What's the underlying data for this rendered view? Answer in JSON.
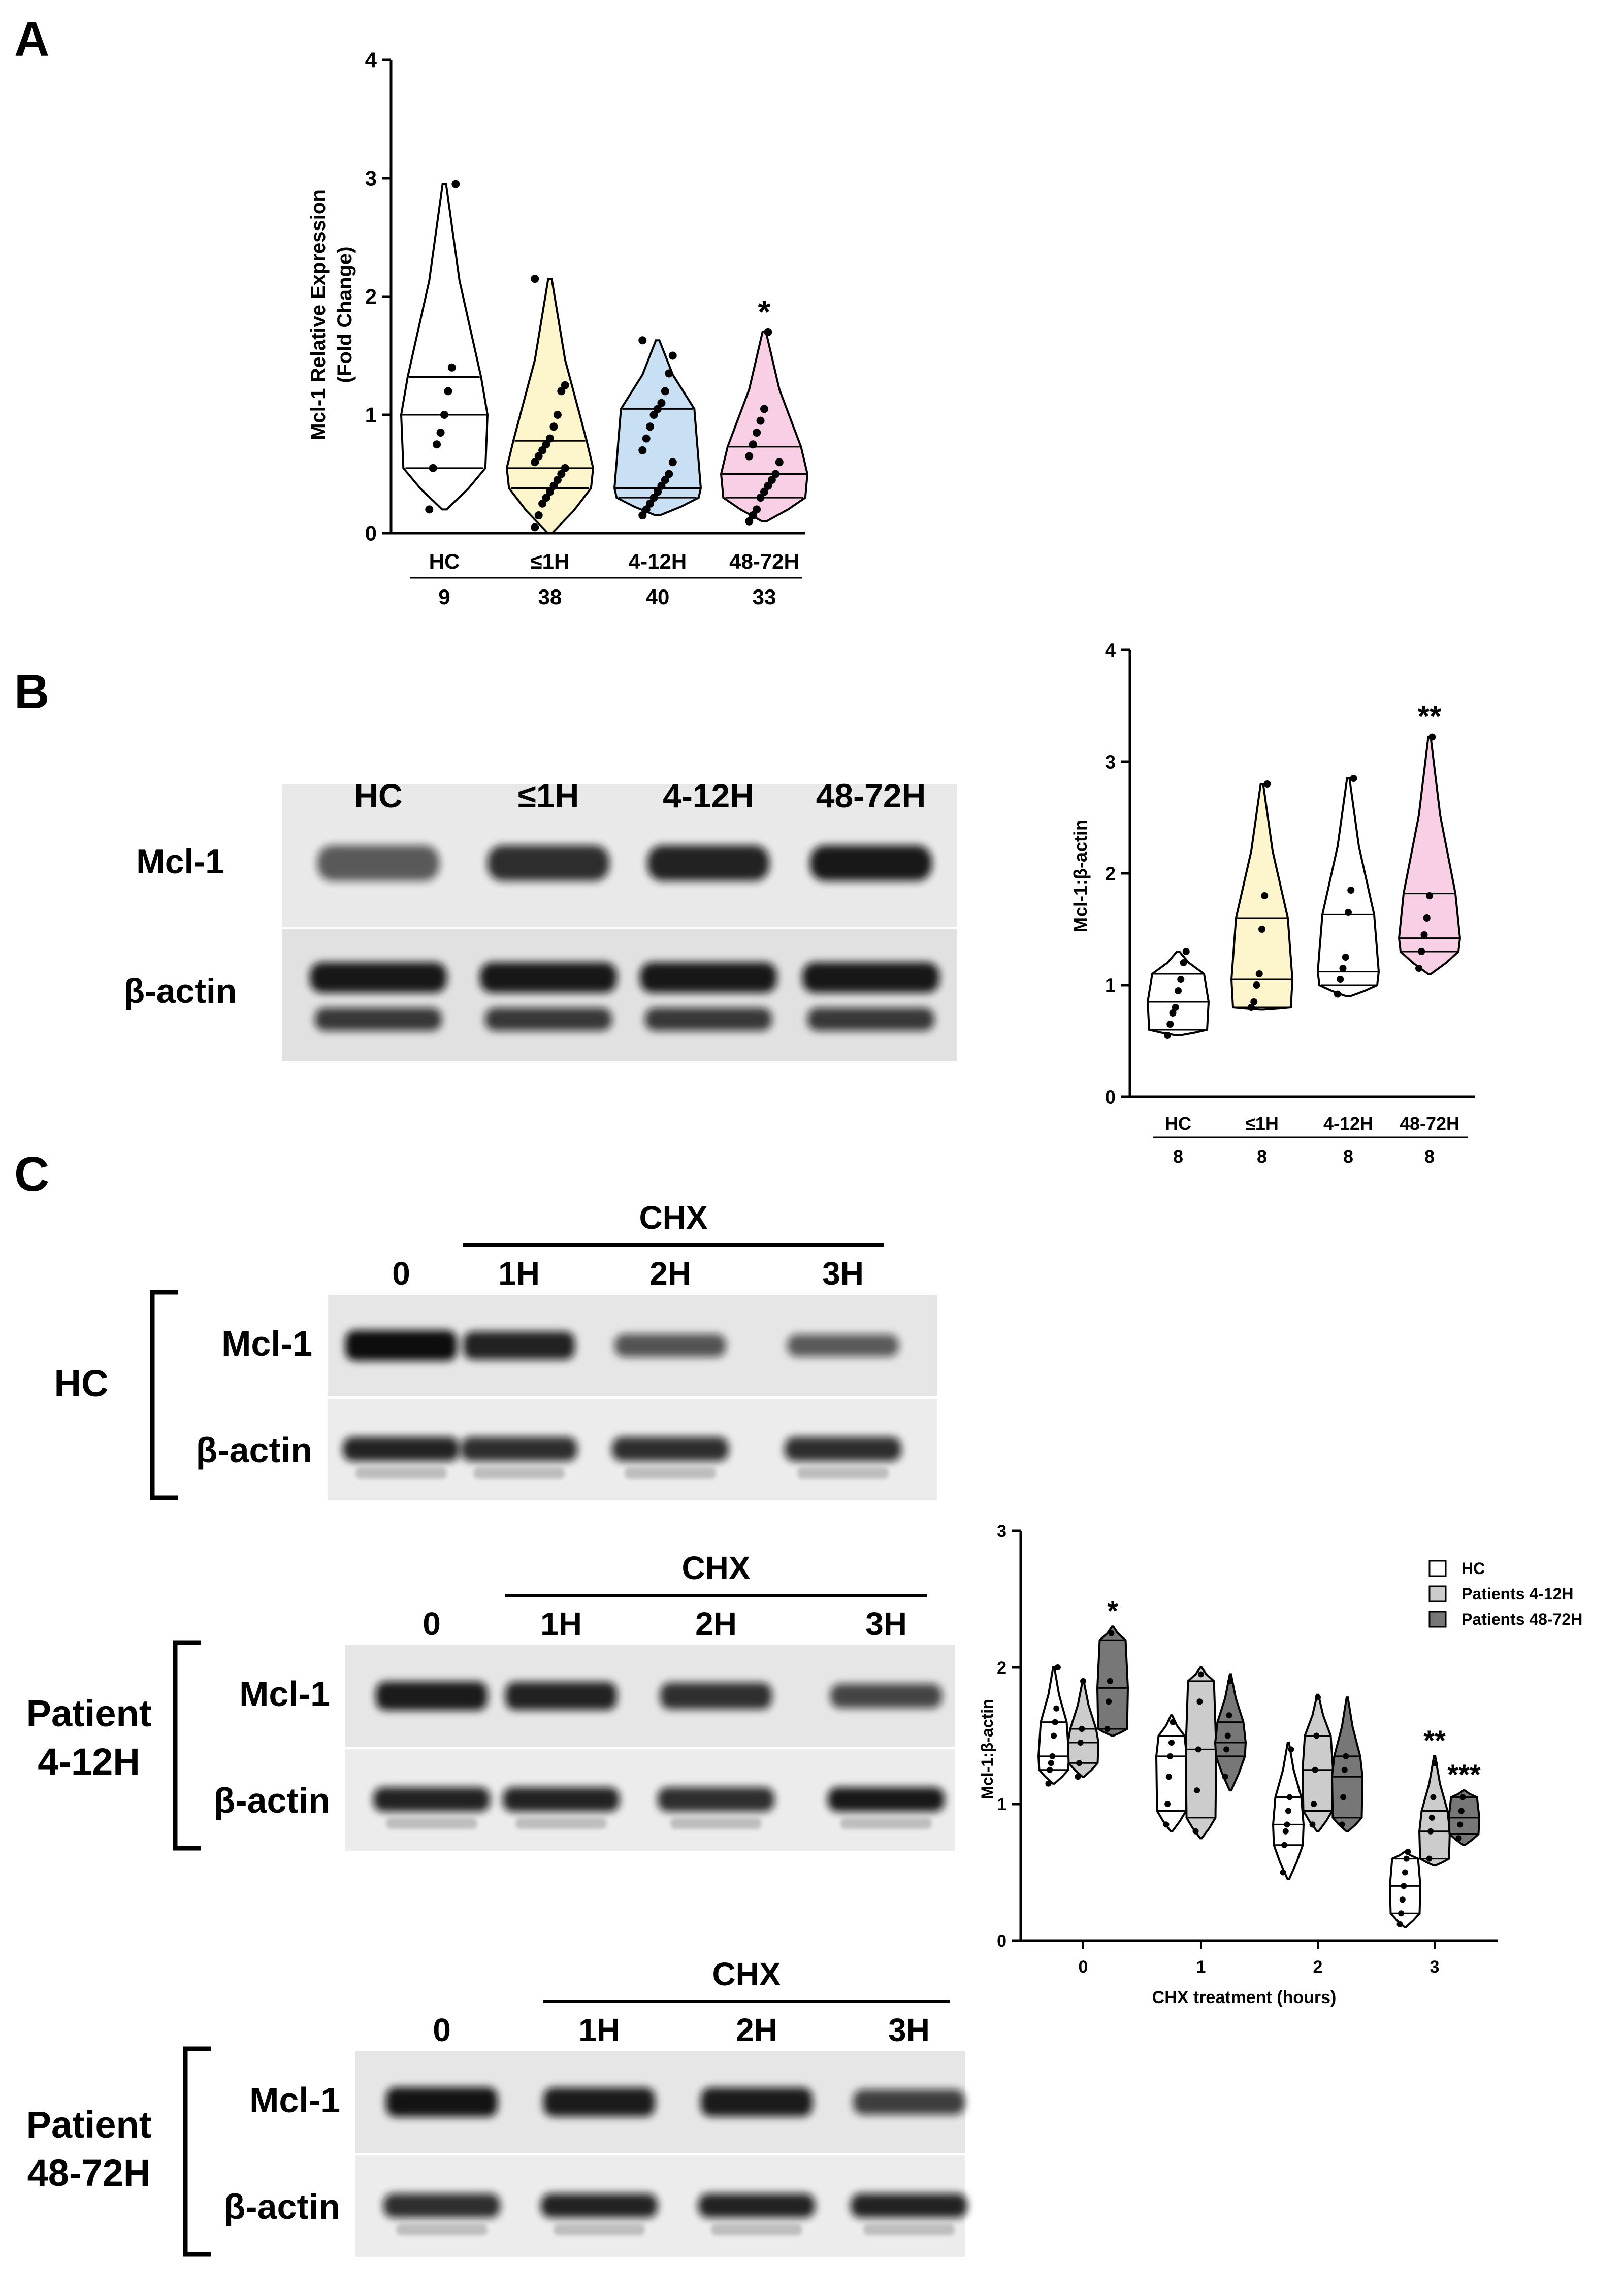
{
  "panels": {
    "A": "A",
    "B": "B",
    "C": "C"
  },
  "chart_data": [
    {
      "type": "violin",
      "panel": "A",
      "ylabel_line1": "Mcl-1 Relative Expression",
      "ylabel_line2": "(Fold Change)",
      "ylim": [
        0,
        4
      ],
      "yticks": [
        "0",
        "1",
        "2",
        "3",
        "4"
      ],
      "categories": [
        "HC",
        "≤1H",
        "4-12H",
        "48-72H"
      ],
      "n_labels": [
        "9",
        "38",
        "40",
        "33"
      ],
      "colors": [
        "#ffffff",
        "#fdf5cc",
        "#c9dff3",
        "#f9cfe6"
      ],
      "series": [
        {
          "min": 0.2,
          "max": 2.95,
          "median": 1.0,
          "q1": 0.55,
          "q3": 1.32,
          "points": [
            0.2,
            0.55,
            0.75,
            0.85,
            1.0,
            1.2,
            1.4,
            2.95
          ]
        },
        {
          "min": 0.0,
          "max": 2.15,
          "median": 0.55,
          "q1": 0.38,
          "q3": 0.78,
          "points": [
            0.05,
            0.15,
            0.25,
            0.3,
            0.35,
            0.4,
            0.45,
            0.5,
            0.55,
            0.6,
            0.65,
            0.7,
            0.75,
            0.8,
            0.9,
            1.0,
            1.2,
            1.25,
            2.15
          ]
        },
        {
          "min": 0.15,
          "max": 1.63,
          "median": 0.38,
          "q1": 0.3,
          "q3": 1.05,
          "points": [
            0.15,
            0.2,
            0.25,
            0.3,
            0.35,
            0.4,
            0.45,
            0.5,
            0.6,
            0.7,
            0.8,
            0.9,
            1.0,
            1.05,
            1.1,
            1.2,
            1.35,
            1.5,
            1.63
          ]
        },
        {
          "min": 0.1,
          "max": 1.7,
          "median": 0.5,
          "q1": 0.3,
          "q3": 0.73,
          "points": [
            0.1,
            0.15,
            0.2,
            0.3,
            0.35,
            0.4,
            0.45,
            0.5,
            0.6,
            0.65,
            0.75,
            0.85,
            0.95,
            1.05,
            1.7
          ]
        }
      ],
      "annotations": [
        {
          "category": "48-72H",
          "text": "*"
        }
      ]
    },
    {
      "type": "violin",
      "panel": "B",
      "ylabel": "Mcl-1:β-actin",
      "ylim": [
        0,
        4
      ],
      "yticks": [
        "0",
        "1",
        "2",
        "3",
        "4"
      ],
      "categories": [
        "HC",
        "≤1H",
        "4-12H",
        "48-72H"
      ],
      "n_labels": [
        "8",
        "8",
        "8",
        "8"
      ],
      "colors": [
        "#ffffff",
        "#fdf5cc",
        "#ffffff",
        "#f9cfe6"
      ],
      "series": [
        {
          "min": 0.55,
          "max": 1.3,
          "median": 0.85,
          "q1": 0.6,
          "q3": 1.1,
          "points": [
            0.55,
            0.65,
            0.75,
            0.8,
            0.95,
            1.05,
            1.2,
            1.3
          ]
        },
        {
          "min": 0.78,
          "max": 2.8,
          "median": 1.05,
          "q1": 0.8,
          "q3": 1.6,
          "points": [
            0.8,
            0.85,
            1.0,
            1.1,
            1.5,
            1.8,
            2.8
          ]
        },
        {
          "min": 0.9,
          "max": 2.85,
          "median": 1.12,
          "q1": 1.0,
          "q3": 1.63,
          "points": [
            0.92,
            1.05,
            1.15,
            1.25,
            1.65,
            1.85,
            2.85
          ]
        },
        {
          "min": 1.1,
          "max": 3.22,
          "median": 1.42,
          "q1": 1.3,
          "q3": 1.82,
          "points": [
            1.15,
            1.3,
            1.45,
            1.6,
            1.8,
            3.22
          ]
        }
      ],
      "annotations": [
        {
          "category": "48-72H",
          "text": "**"
        }
      ]
    },
    {
      "type": "violin",
      "panel": "C",
      "ylabel": "Mcl-1:β-actin",
      "xlabel": "CHX treatment (hours)",
      "ylim": [
        0,
        3
      ],
      "yticks": [
        "0",
        "1",
        "2",
        "3"
      ],
      "categories": [
        "0",
        "1",
        "2",
        "3"
      ],
      "legend": [
        {
          "name": "HC",
          "color": "#ffffff"
        },
        {
          "name": "Patients 4-12H",
          "color": "#cccccc"
        },
        {
          "name": "Patients 48-72H",
          "color": "#777777"
        }
      ],
      "groups": [
        [
          {
            "min": 1.15,
            "max": 2.0,
            "median": 1.35,
            "q1": 1.25,
            "q3": 1.6,
            "points": [
              1.15,
              1.25,
              1.3,
              1.35,
              1.5,
              1.6,
              1.7,
              2.0
            ]
          },
          {
            "min": 1.2,
            "max": 1.9,
            "median": 1.45,
            "q1": 1.3,
            "q3": 1.55,
            "points": [
              1.2,
              1.3,
              1.45,
              1.55,
              1.9
            ]
          },
          {
            "min": 1.5,
            "max": 2.3,
            "median": 1.85,
            "q1": 1.55,
            "q3": 2.2,
            "points": [
              1.55,
              1.75,
              1.9,
              2.25
            ]
          }
        ],
        [
          {
            "min": 0.8,
            "max": 1.65,
            "median": 1.35,
            "q1": 0.95,
            "q3": 1.5,
            "points": [
              0.85,
              1.0,
              1.2,
              1.35,
              1.45,
              1.6
            ]
          },
          {
            "min": 0.75,
            "max": 2.0,
            "median": 1.4,
            "q1": 0.9,
            "q3": 1.9,
            "points": [
              0.8,
              1.1,
              1.4,
              1.75,
              1.95
            ]
          },
          {
            "min": 1.1,
            "max": 1.95,
            "median": 1.45,
            "q1": 1.35,
            "q3": 1.6,
            "points": [
              1.2,
              1.4,
              1.5,
              1.65,
              1.9
            ]
          }
        ],
        [
          {
            "min": 0.45,
            "max": 1.45,
            "median": 0.85,
            "q1": 0.7,
            "q3": 1.05,
            "points": [
              0.5,
              0.7,
              0.8,
              0.85,
              0.95,
              1.05,
              1.4
            ]
          },
          {
            "min": 0.8,
            "max": 1.8,
            "median": 1.25,
            "q1": 0.95,
            "q3": 1.5,
            "points": [
              0.85,
              1.0,
              1.25,
              1.5,
              1.78
            ]
          },
          {
            "min": 0.8,
            "max": 1.78,
            "median": 1.2,
            "q1": 0.9,
            "q3": 1.35,
            "points": [
              0.85,
              1.05,
              1.25,
              1.35
            ]
          }
        ],
        [
          {
            "min": 0.1,
            "max": 0.65,
            "median": 0.4,
            "q1": 0.2,
            "q3": 0.6,
            "points": [
              0.12,
              0.2,
              0.3,
              0.4,
              0.5,
              0.6,
              0.65
            ]
          },
          {
            "min": 0.55,
            "max": 1.35,
            "median": 0.8,
            "q1": 0.6,
            "q3": 0.95,
            "points": [
              0.6,
              0.8,
              0.9,
              1.05,
              1.3
            ]
          },
          {
            "min": 0.7,
            "max": 1.1,
            "median": 0.9,
            "q1": 0.78,
            "q3": 1.05,
            "points": [
              0.75,
              0.85,
              0.95,
              1.05
            ]
          }
        ]
      ],
      "annotations": [
        {
          "group": 0,
          "member": 2,
          "text": "*"
        },
        {
          "group": 3,
          "member": 1,
          "text": "**"
        },
        {
          "group": 3,
          "member": 2,
          "text": "***"
        }
      ]
    }
  ],
  "blots": {
    "B": {
      "lanes": [
        "HC",
        "≤1H",
        "4-12H",
        "48-72H"
      ],
      "rows": [
        "Mcl-1",
        "β-actin"
      ]
    },
    "C": [
      {
        "group": "HC",
        "treatment": "CHX",
        "lanes": [
          "0",
          "1H",
          "2H",
          "3H"
        ],
        "rows": [
          "Mcl-1",
          "β-actin"
        ],
        "mcl1_intensity": [
          1.0,
          0.85,
          0.5,
          0.45
        ],
        "actin_intensity": [
          0.9,
          0.85,
          0.85,
          0.85
        ]
      },
      {
        "group_line1": "Patient",
        "group_line2": "4-12H",
        "treatment": "CHX",
        "lanes": [
          "0",
          "1H",
          "2H",
          "3H"
        ],
        "rows": [
          "Mcl-1",
          "β-actin"
        ],
        "mcl1_intensity": [
          0.9,
          0.85,
          0.75,
          0.6
        ],
        "actin_intensity": [
          0.9,
          0.9,
          0.85,
          0.95
        ]
      },
      {
        "group_line1": "Patient",
        "group_line2": "48-72H",
        "treatment": "CHX",
        "lanes": [
          "0",
          "1H",
          "2H",
          "3H"
        ],
        "rows": [
          "Mcl-1",
          "β-actin"
        ],
        "mcl1_intensity": [
          0.95,
          0.9,
          0.9,
          0.65
        ],
        "actin_intensity": [
          0.85,
          0.9,
          0.9,
          0.9
        ]
      }
    ]
  }
}
